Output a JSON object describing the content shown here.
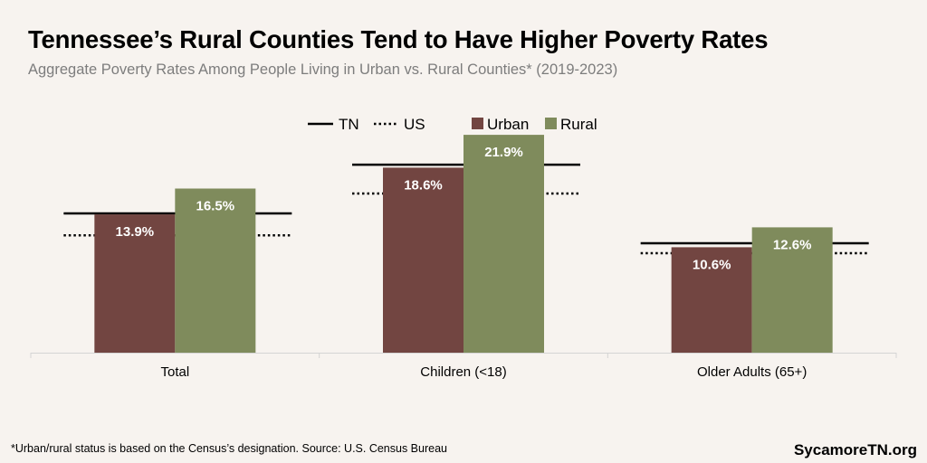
{
  "title": "Tennessee’s Rural Counties Tend to Have Higher Poverty Rates",
  "subtitle": "Aggregate Poverty Rates Among People Living in Urban vs. Rural Counties* (2019-2023)",
  "footnote": "*Urban/rural status is based on the Census’s designation. Source: U.S. Census Bureau",
  "brand": "SycamoreTN.org",
  "colors": {
    "urban": "#724541",
    "rural": "#7f8b5c",
    "reference": "#000000",
    "axis": "#d4d4d4",
    "label": "#ffffff"
  },
  "chart_data": {
    "type": "bar",
    "categories": [
      "Total",
      "Children (<18)",
      "Older Adults (65+)"
    ],
    "series": [
      {
        "name": "Urban",
        "values": [
          13.9,
          18.6,
          10.6
        ],
        "labels": [
          "13.9%",
          "18.6%",
          "10.6%"
        ]
      },
      {
        "name": "Rural",
        "values": [
          16.5,
          21.9,
          12.6
        ],
        "labels": [
          "16.5%",
          "21.9%",
          "12.6%"
        ]
      }
    ],
    "reference_lines": [
      {
        "name": "TN",
        "style": "solid",
        "values": [
          14.0,
          18.9,
          11.0
        ]
      },
      {
        "name": "US",
        "style": "dotted",
        "values": [
          11.8,
          16.0,
          10.0
        ]
      }
    ],
    "legend": [
      "TN",
      "US",
      "Urban",
      "Rural"
    ],
    "legend_position": "top-center",
    "ylim": [
      0,
      25
    ],
    "grid": false,
    "xlabel": "",
    "ylabel": ""
  }
}
